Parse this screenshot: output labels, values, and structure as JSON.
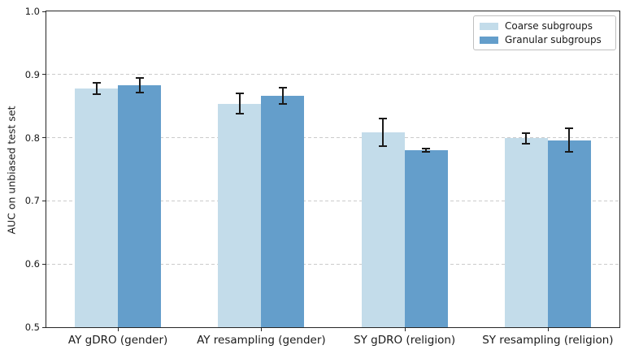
{
  "chart_data": {
    "type": "bar",
    "title": "",
    "xlabel": "",
    "ylabel": "AUC on unbiased test set",
    "categories": [
      "AY gDRO (gender)",
      "AY resampling (gender)",
      "SY gDRO (religion)",
      "SY resampling (religion)"
    ],
    "series": [
      {
        "name": "Coarse subgroups",
        "color": "#c3dcea",
        "values": [
          0.878,
          0.854,
          0.808,
          0.799
        ],
        "errors": [
          0.009,
          0.016,
          0.022,
          0.008
        ]
      },
      {
        "name": "Granular subgroups",
        "color": "#649ecb",
        "values": [
          0.883,
          0.866,
          0.78,
          0.796
        ],
        "errors": [
          0.012,
          0.013,
          0.003,
          0.019
        ]
      }
    ],
    "ylim": [
      0.5,
      1.0
    ],
    "yticks": [
      "1.0",
      "0.9",
      "0.8",
      "0.7",
      "0.6",
      "0.5"
    ],
    "ytick_values": [
      1.0,
      0.9,
      0.8,
      0.7,
      0.6,
      0.5
    ],
    "grid": "horizontal-dashed",
    "grid_values": [
      0.9,
      0.8,
      0.7,
      0.6
    ],
    "legend_position": "upper-right",
    "error_bars": true
  }
}
